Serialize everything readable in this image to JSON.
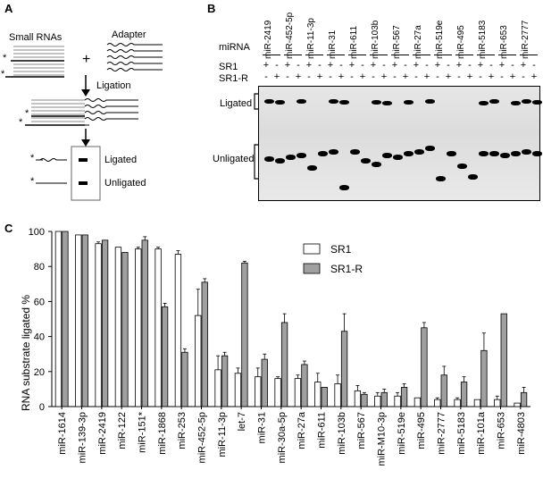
{
  "panel_a": {
    "label": "A",
    "small_rnas": "Small RNAs",
    "adapter": "Adapter",
    "plus": "+",
    "ligation": "Ligation",
    "ligated": "Ligated",
    "unligated": "Unligated",
    "star": "*"
  },
  "panel_b": {
    "label": "B",
    "mirna_heading": "miRNA",
    "sr1": "SR1",
    "sr1r": "SR1-R",
    "ligated": "Ligated",
    "unligated": "Unligated",
    "mirnas": [
      "miR-2419",
      "miR-452-5p",
      "miR-11-3p",
      "miR-31",
      "miR-611",
      "miR-103b",
      "miR-567",
      "miR-27a",
      "miR-519e",
      "miR-495",
      "miR-5183",
      "miR-653",
      "miR-2777"
    ],
    "sr1_signs": [
      "+",
      "-"
    ],
    "sr1r_signs": [
      "-",
      "+"
    ]
  },
  "chart_data": {
    "type": "bar",
    "panel_label": "C",
    "ylabel": "RNA substrate ligated %",
    "xlabel": "",
    "ylim": [
      0,
      100
    ],
    "yticks": [
      0,
      20,
      40,
      60,
      80,
      100
    ],
    "legend_position": "top-right",
    "categories": [
      "miR-1614",
      "miR-139-3p",
      "miR-2419",
      "miR-122",
      "miR-151*",
      "miR-1868",
      "miR-253",
      "miR-452-5p",
      "miR-11-3p",
      "let-7",
      "miR-31",
      "miR-30a-5p",
      "miR-27a",
      "miR-611",
      "miR-103b",
      "miR-567",
      "miR-M10-3p",
      "miR-519e",
      "miR-495",
      "miR-2777",
      "miR-5183",
      "miR-101a",
      "miR-653",
      "miR-4803"
    ],
    "series": [
      {
        "name": "SR1",
        "color": "#ffffff",
        "values": [
          100,
          98,
          93,
          91,
          90,
          90,
          87,
          52,
          21,
          19,
          17,
          16,
          16,
          14,
          13,
          9,
          6,
          6,
          5,
          4,
          4,
          4,
          4,
          2
        ],
        "errors": [
          0,
          0,
          1,
          0,
          1,
          1,
          2,
          15,
          8,
          3,
          5,
          1,
          2,
          5,
          5,
          3,
          2,
          2,
          0,
          1,
          1,
          0,
          2,
          0
        ]
      },
      {
        "name": "SR1-R",
        "color": "#a0a0a0",
        "values": [
          100,
          98,
          95,
          88,
          95,
          57,
          31,
          71,
          29,
          82,
          27,
          48,
          24,
          11,
          43,
          7,
          8,
          11,
          45,
          18,
          14,
          32,
          53,
          8
        ],
        "errors": [
          0,
          0,
          0,
          0,
          2,
          2,
          2,
          2,
          2,
          1,
          3,
          5,
          2,
          0,
          10,
          1,
          2,
          2,
          3,
          5,
          3,
          10,
          0,
          3
        ]
      }
    ]
  }
}
